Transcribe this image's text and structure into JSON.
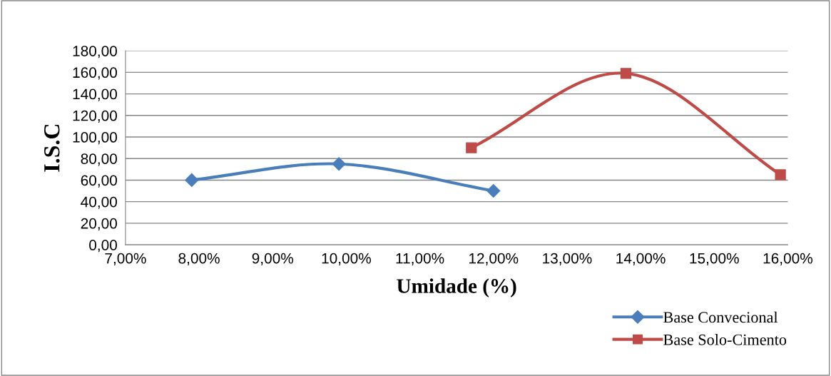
{
  "chart_data": {
    "type": "line",
    "xlabel": "Umidade (%)",
    "ylabel": "I.S.C",
    "xlim": [
      7,
      16
    ],
    "xticks": [
      {
        "value": 7,
        "label": "7,00%"
      },
      {
        "value": 8,
        "label": "8,00%"
      },
      {
        "value": 9,
        "label": "9,00%"
      },
      {
        "value": 10,
        "label": "10,00%"
      },
      {
        "value": 11,
        "label": "11,00%"
      },
      {
        "value": 12,
        "label": "12,00%"
      },
      {
        "value": 13,
        "label": "13,00%"
      },
      {
        "value": 14,
        "label": "14,00%"
      },
      {
        "value": 15,
        "label": "15,00%"
      },
      {
        "value": 16,
        "label": "16,00%"
      }
    ],
    "ylim": [
      0,
      180
    ],
    "yticks": [
      {
        "value": 0,
        "label": "0,00"
      },
      {
        "value": 20,
        "label": "20,00"
      },
      {
        "value": 40,
        "label": "40,00"
      },
      {
        "value": 60,
        "label": "60,00"
      },
      {
        "value": 80,
        "label": "80,00"
      },
      {
        "value": 100,
        "label": "100,00"
      },
      {
        "value": 120,
        "label": "120,00"
      },
      {
        "value": 140,
        "label": "140,00"
      },
      {
        "value": 160,
        "label": "160,00"
      },
      {
        "value": 180,
        "label": "180,00"
      }
    ],
    "grid": "y",
    "legend": "bottom right",
    "line_style": "solid",
    "series": [
      {
        "name": "Base Convecional",
        "color": "#4a7ebb",
        "marker": "diamond",
        "x": [
          7.9,
          9.9,
          12.0
        ],
        "values": [
          60,
          75,
          50
        ]
      },
      {
        "name": "Base Solo-Cimento",
        "color": "#be4b48",
        "marker": "square",
        "x": [
          11.7,
          13.8,
          15.9
        ],
        "values": [
          90,
          159,
          65
        ]
      }
    ]
  }
}
